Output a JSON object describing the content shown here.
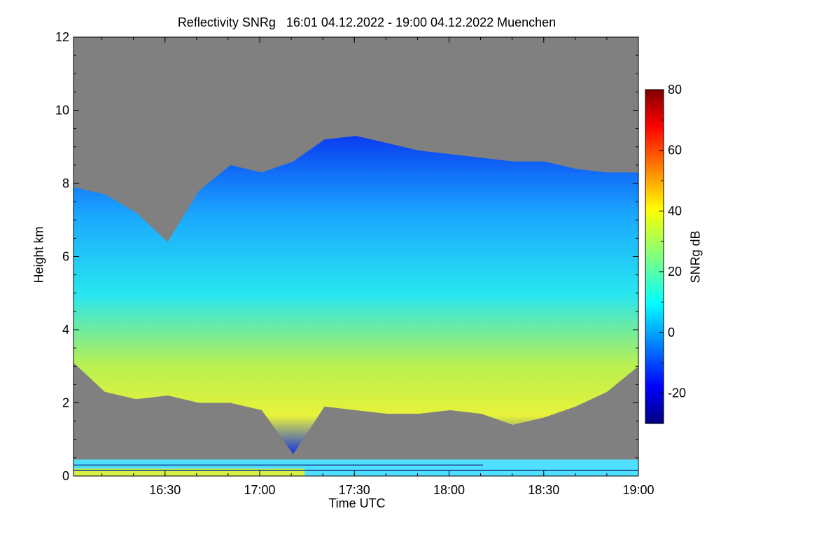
{
  "chart_data": {
    "type": "heatmap",
    "title": "Reflectivity SNRg   16:01 04.12.2022 - 19:00 04.12.2022 Muenchen",
    "xlabel": "Time UTC",
    "ylabel": "Height km",
    "colorbar_label": "SNRg dB",
    "x_start": "16:01",
    "x_end": "19:00",
    "x_ticks": [
      "16:30",
      "17:00",
      "17:30",
      "18:00",
      "18:30",
      "19:00"
    ],
    "ylim": [
      0,
      12
    ],
    "y_ticks": [
      "0",
      "2",
      "4",
      "6",
      "8",
      "10",
      "12"
    ],
    "colorbar_range": [
      -30,
      80
    ],
    "colorbar_ticks": [
      "-20",
      "0",
      "20",
      "40",
      "60",
      "80"
    ],
    "colormap": "jet",
    "no_data_color": "#808080",
    "cloud_top_km": [
      7.9,
      7.7,
      7.2,
      6.4,
      7.8,
      8.5,
      8.3,
      8.6,
      9.2,
      9.3,
      9.1,
      8.9,
      8.8,
      8.7,
      8.6,
      8.6,
      8.4,
      8.3,
      8.3
    ],
    "cloud_base_km": [
      3.1,
      2.3,
      2.1,
      2.2,
      2.0,
      2.0,
      1.8,
      0.6,
      1.9,
      1.8,
      1.7,
      1.7,
      1.8,
      1.7,
      1.4,
      1.6,
      1.9,
      2.3,
      3.0
    ]
  }
}
